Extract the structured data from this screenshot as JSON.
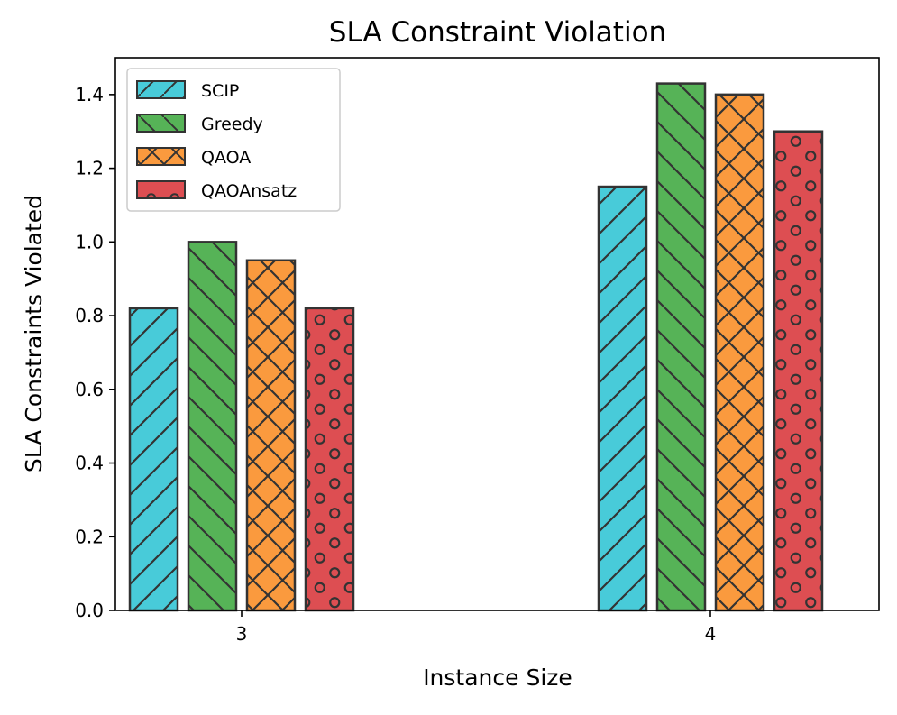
{
  "chart_data": {
    "type": "bar",
    "title": "SLA Constraint Violation",
    "xlabel": "Instance Size",
    "ylabel": "SLA Constraints Violated",
    "categories": [
      "3",
      "4"
    ],
    "ylim": [
      0,
      1.5
    ],
    "yticks": [
      0.0,
      0.2,
      0.4,
      0.6,
      0.8,
      1.0,
      1.2,
      1.4
    ],
    "ytick_labels": [
      "0.0",
      "0.2",
      "0.4",
      "0.6",
      "0.8",
      "1.0",
      "1.2",
      "1.4"
    ],
    "legend_position": "top-left",
    "grid": false,
    "series": [
      {
        "name": "SCIP",
        "values": [
          0.82,
          1.15
        ],
        "color": "#48CBD9",
        "hatch": "forward-diagonal"
      },
      {
        "name": "Greedy",
        "values": [
          1.0,
          1.43
        ],
        "color": "#56B357",
        "hatch": "back-diagonal"
      },
      {
        "name": "QAOA",
        "values": [
          0.95,
          1.4
        ],
        "color": "#FA9A3E",
        "hatch": "cross"
      },
      {
        "name": "QAOAnsatz",
        "values": [
          0.82,
          1.3
        ],
        "color": "#DD4E52",
        "hatch": "circles"
      }
    ],
    "edge_color": "#333333"
  }
}
